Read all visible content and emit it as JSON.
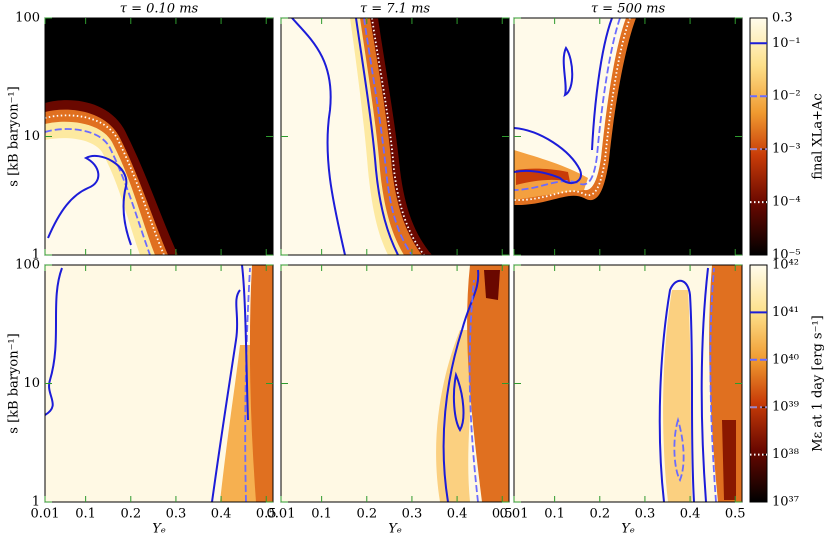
{
  "chart_data": {
    "type": "heatmap",
    "columns": [
      "τ = 0.10 ms",
      "τ = 7.1 ms",
      "τ = 500 ms"
    ],
    "x_label": "Yₑ",
    "y_label": "s [kB baryon⁻¹]",
    "xlim": [
      0.01,
      0.515
    ],
    "xticks": [
      0.01,
      0.1,
      0.2,
      0.3,
      0.4,
      0.5
    ],
    "ylim": [
      1,
      100
    ],
    "yticks": [
      1,
      10,
      100
    ],
    "y_log": true,
    "tick_color": "#2e9a2e",
    "colorbars": [
      {
        "label": "final XLa+Ac",
        "log": true,
        "lim": [
          1e-05,
          0.3
        ],
        "ticks": [
          {
            "value": 1e-05,
            "label": "10⁻⁵"
          },
          {
            "value": 0.0001,
            "label": "10⁻⁴"
          },
          {
            "value": 0.001,
            "label": "10⁻³"
          },
          {
            "value": 0.01,
            "label": "10⁻²"
          },
          {
            "value": 0.1,
            "label": "10⁻¹"
          },
          0.3
        ],
        "contours": [
          {
            "level": 0.1,
            "style": "solid",
            "color": "#1c1cd8"
          },
          {
            "level": 0.01,
            "style": "dashed",
            "color": "#6b6bff"
          },
          {
            "level": 0.001,
            "style": "dashdot",
            "color": "#9b86c8"
          },
          {
            "level": 0.0001,
            "style": "dotted",
            "color": "#ffffff"
          }
        ]
      },
      {
        "label": "Mε at 1 day [erg s⁻¹]",
        "log": true,
        "lim": [
          1e+37,
          1e+42
        ],
        "ticks": [
          {
            "value": 1e+37,
            "label": "10³⁷"
          },
          {
            "value": 1e+38,
            "label": "10³⁸"
          },
          {
            "value": 1e+39,
            "label": "10³⁹"
          },
          {
            "value": 1e+40,
            "label": "10⁴⁰"
          },
          {
            "value": 1e+41,
            "label": "10⁴¹"
          },
          {
            "value": 1e+42,
            "label": "10⁴²"
          }
        ],
        "contours": [
          {
            "level": 1e+41,
            "style": "solid",
            "color": "#1c1cd8"
          },
          {
            "level": 1e+40,
            "style": "dashed",
            "color": "#6b6bff"
          },
          {
            "level": 1e+39,
            "style": "dashdot",
            "color": "#9b86c8"
          },
          {
            "level": 1e+38,
            "style": "dotted",
            "color": "#ffffff"
          }
        ]
      }
    ]
  }
}
